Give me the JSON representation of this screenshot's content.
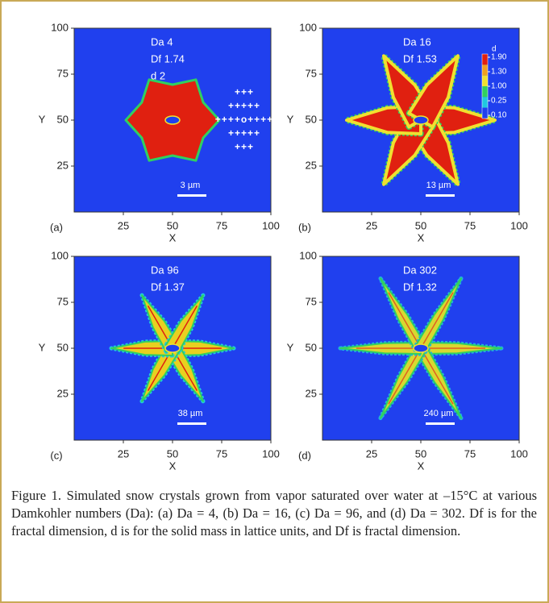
{
  "chart_data": [
    {
      "type": "image",
      "panel": "(a)",
      "xlabel": "X",
      "ylabel": "Y",
      "xlim": [
        0,
        100
      ],
      "ylim": [
        0,
        100
      ],
      "xticks": [
        25,
        50,
        75,
        100
      ],
      "yticks": [
        25,
        50,
        75,
        100
      ],
      "annotations": [
        "Da 4",
        "Df 1.74",
        "d 2"
      ],
      "scale_bar": "3 µm",
      "lattice": [
        "+++",
        "+++++",
        "++++o++++",
        "+++++",
        "+++"
      ]
    },
    {
      "type": "image",
      "panel": "(b)",
      "xlabel": "X",
      "ylabel": "Y",
      "xlim": [
        0,
        100
      ],
      "ylim": [
        0,
        100
      ],
      "xticks": [
        25,
        50,
        75,
        100
      ],
      "yticks": [
        25,
        50,
        75,
        100
      ],
      "annotations": [
        "Da 16",
        "Df 1.53"
      ],
      "scale_bar": "13 µm",
      "colorbar_title": "d",
      "colorbar_ticks": [
        {
          "value": 1.9,
          "label": "1.90"
        },
        {
          "value": 1.3,
          "label": "1.30"
        },
        {
          "value": 1.0,
          "label": "1.00"
        },
        0.25,
        {
          "value": 0.1,
          "label": "0.10"
        }
      ],
      "colorbar_colors": [
        "#e02010",
        "#f0a020",
        "#f0e030",
        "#30d060",
        "#20c8e0",
        "#2040ee"
      ]
    },
    {
      "type": "image",
      "panel": "(c)",
      "xlabel": "X",
      "ylabel": "Y",
      "xlim": [
        0,
        100
      ],
      "ylim": [
        0,
        100
      ],
      "xticks": [
        25,
        50,
        75,
        100
      ],
      "yticks": [
        25,
        50,
        75,
        100
      ],
      "annotations": [
        "Da 96",
        "Df 1.37"
      ],
      "scale_bar": "38 µm"
    },
    {
      "type": "image",
      "panel": "(d)",
      "xlabel": "X",
      "ylabel": "Y",
      "xlim": [
        0,
        100
      ],
      "ylim": [
        0,
        100
      ],
      "xticks": [
        25,
        50,
        75,
        100
      ],
      "yticks": [
        25,
        50,
        75,
        100
      ],
      "annotations": [
        "Da 302",
        "Df 1.32"
      ],
      "scale_bar": "240 µm"
    }
  ],
  "caption": "Figure 1. Simulated snow crystals grown from vapor saturated over water at –15°C at various Damkohler numbers (Da): (a) Da = 4, (b) Da = 16, (c) Da = 96, and (d) Da = 302. Df is for the fractal dimension, d is for the solid mass in lattice units, and Df is fractal dimension."
}
